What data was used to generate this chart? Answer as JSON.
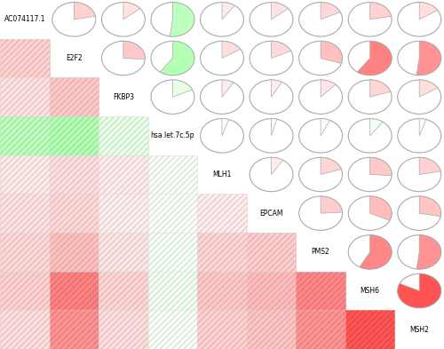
{
  "labels": [
    "AC074117.1",
    "E2F2",
    "FKBP3",
    "hsa.let.7c.5p",
    "MLH1",
    "EPCAM",
    "PMS2",
    "MSH6",
    "MSH2"
  ],
  "corr": [
    [
      1.0,
      0.22,
      0.14,
      -0.52,
      0.1,
      0.14,
      0.18,
      0.22,
      0.16
    ],
    [
      0.22,
      1.0,
      0.26,
      -0.6,
      0.16,
      0.18,
      0.3,
      0.6,
      0.52
    ],
    [
      0.14,
      0.26,
      1.0,
      -0.18,
      0.09,
      0.08,
      0.12,
      0.2,
      0.16
    ],
    [
      -0.52,
      -0.6,
      -0.18,
      1.0,
      -0.05,
      -0.04,
      -0.07,
      -0.1,
      -0.05
    ],
    [
      0.1,
      0.16,
      0.09,
      -0.05,
      1.0,
      0.09,
      0.2,
      0.26,
      0.22
    ],
    [
      0.14,
      0.18,
      0.08,
      -0.04,
      0.09,
      1.0,
      0.24,
      0.32,
      0.28
    ],
    [
      0.18,
      0.3,
      0.12,
      -0.07,
      0.2,
      0.24,
      1.0,
      0.58,
      0.52
    ],
    [
      0.22,
      0.6,
      0.2,
      -0.1,
      0.26,
      0.32,
      0.58,
      1.0,
      0.82
    ],
    [
      0.16,
      0.52,
      0.16,
      -0.05,
      0.22,
      0.28,
      0.52,
      0.82,
      1.0
    ]
  ],
  "label_fontsize": 5.5,
  "background_color": "#ffffff",
  "cell_edge_color": "#ffffff",
  "pie_border_color": "#aaaaaa",
  "positive_red": [
    1.0,
    0.18,
    0.18
  ],
  "negative_green": [
    0.5,
    1.0,
    0.5
  ],
  "white": [
    1.0,
    1.0,
    1.0
  ],
  "hatch_color_scale": 0.88
}
